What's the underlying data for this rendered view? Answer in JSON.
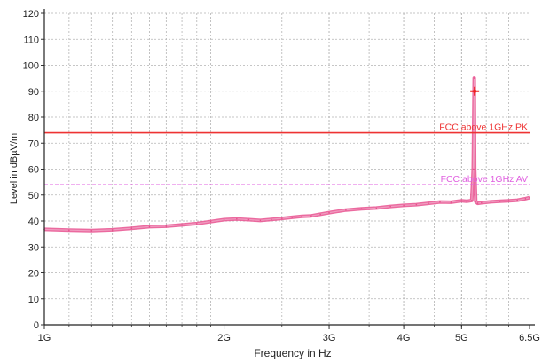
{
  "chart_data": {
    "type": "line",
    "xlabel": "Frequency in Hz",
    "ylabel": "Level in dBµV/m",
    "x_scale": "log",
    "xlim": [
      1000000000,
      6500000000
    ],
    "ylim": [
      0,
      120
    ],
    "y_ticks": [
      0,
      10,
      20,
      30,
      40,
      50,
      60,
      70,
      80,
      90,
      100,
      110,
      120
    ],
    "x_ticks": [
      {
        "value": 1000000000,
        "label": "1G"
      },
      {
        "value": 2000000000,
        "label": "2G"
      },
      {
        "value": 3000000000,
        "label": "3G"
      },
      {
        "value": 4000000000,
        "label": "4G"
      },
      {
        "value": 5000000000,
        "label": "5G"
      },
      {
        "value": 6500000000,
        "label": "6.5G"
      }
    ],
    "grid": true,
    "series": [
      {
        "color": "#e8508e",
        "x": [
          1000000000,
          1100000000,
          1200000000,
          1300000000,
          1400000000,
          1500000000,
          1600000000,
          1700000000,
          1800000000,
          1900000000,
          2000000000,
          2100000000,
          2200000000,
          2300000000,
          2400000000,
          2500000000,
          2600000000,
          2700000000,
          2800000000,
          2900000000,
          3000000000,
          3200000000,
          3400000000,
          3600000000,
          3800000000,
          4000000000,
          4200000000,
          4400000000,
          4600000000,
          4800000000,
          5000000000,
          5100000000,
          5200000000,
          5230000000,
          5250000000,
          5260000000,
          5280000000,
          5320000000,
          5400000000,
          5600000000,
          5800000000,
          6000000000,
          6200000000,
          6400000000,
          6500000000
        ],
        "y": [
          36.8,
          36.5,
          36.3,
          36.6,
          37.2,
          37.8,
          38.0,
          38.5,
          39.0,
          39.8,
          40.5,
          40.8,
          40.5,
          40.2,
          40.6,
          41.0,
          41.4,
          41.8,
          42.0,
          42.6,
          43.2,
          44.2,
          44.7,
          45.0,
          45.6,
          46.0,
          46.3,
          46.8,
          47.3,
          47.2,
          47.8,
          47.6,
          47.9,
          60.0,
          95.0,
          60.0,
          47.5,
          46.8,
          47.0,
          47.4,
          47.6,
          47.8,
          48.0,
          48.6,
          49.0
        ]
      }
    ],
    "limit_lines": [
      {
        "label": "FCC above 1GHz PK",
        "value": 74,
        "color": "#ee3333",
        "style": "solid"
      },
      {
        "label": "FCC above 1GHz AV",
        "value": 54,
        "color": "#e060e0",
        "style": "dashed"
      }
    ],
    "markers": [
      {
        "x": 5260000000,
        "y": 90,
        "color": "#ee2020",
        "symbol": "star"
      }
    ]
  }
}
